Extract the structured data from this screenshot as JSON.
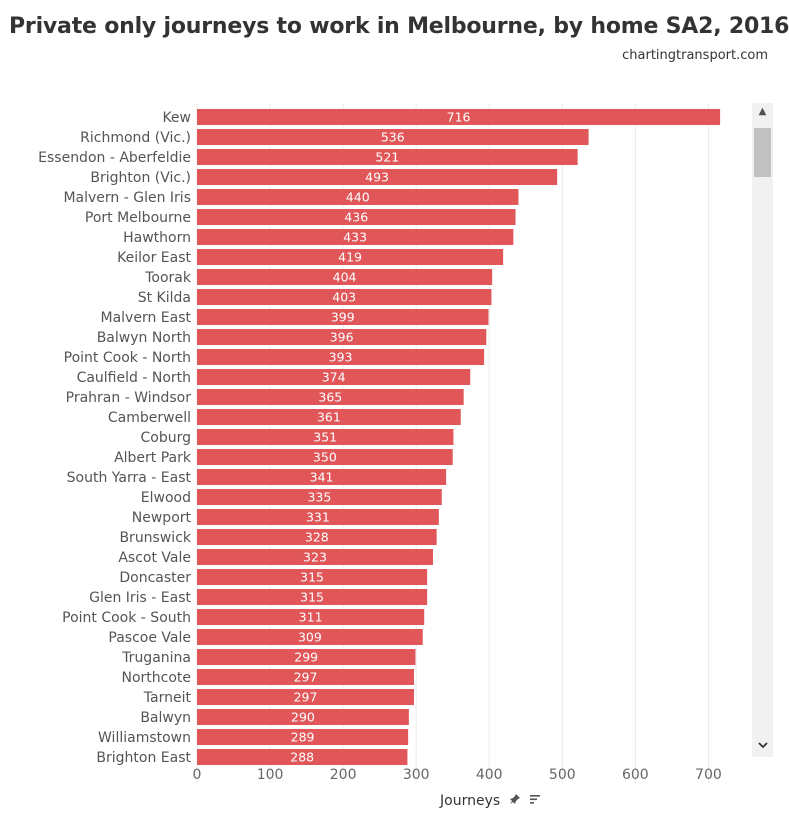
{
  "header": {
    "title": "Private only journeys to work in Melbourne, by home SA2, 2016",
    "source": "chartingtransport.com"
  },
  "axis": {
    "title": "Journeys",
    "pin_icon": "pin-icon",
    "sort_icon": "sort-descending-icon"
  },
  "scrollbar": {
    "up_icon": "chevron-up-icon",
    "down_icon": "chevron-down-icon"
  },
  "colors": {
    "bar": "#e15759",
    "grid": "#ebebeb",
    "label": "#555555"
  },
  "chart_data": {
    "type": "bar",
    "orientation": "horizontal",
    "title": "Private only journeys to work in Melbourne, by home SA2, 2016",
    "xlabel": "Journeys",
    "ylabel": "",
    "xlim": [
      0,
      750
    ],
    "xticks": [
      0,
      100,
      200,
      300,
      400,
      500,
      600,
      700
    ],
    "grid": true,
    "categories": [
      "Kew",
      "Richmond (Vic.)",
      "Essendon - Aberfeldie",
      "Brighton (Vic.)",
      "Malvern - Glen Iris",
      "Port Melbourne",
      "Hawthorn",
      "Keilor East",
      "Toorak",
      "St Kilda",
      "Malvern East",
      "Balwyn North",
      "Point Cook - North",
      "Caulfield - North",
      "Prahran - Windsor",
      "Camberwell",
      "Coburg",
      "Albert Park",
      "South Yarra - East",
      "Elwood",
      "Newport",
      "Brunswick",
      "Ascot Vale",
      "Doncaster",
      "Glen Iris - East",
      "Point Cook - South",
      "Pascoe Vale",
      "Truganina",
      "Northcote",
      "Tarneit",
      "Balwyn",
      "Williamstown",
      "Brighton East"
    ],
    "values": [
      716,
      536,
      521,
      493,
      440,
      436,
      433,
      419,
      404,
      403,
      399,
      396,
      393,
      374,
      365,
      361,
      351,
      350,
      341,
      335,
      331,
      328,
      323,
      315,
      315,
      311,
      309,
      299,
      297,
      297,
      290,
      289,
      288
    ]
  }
}
